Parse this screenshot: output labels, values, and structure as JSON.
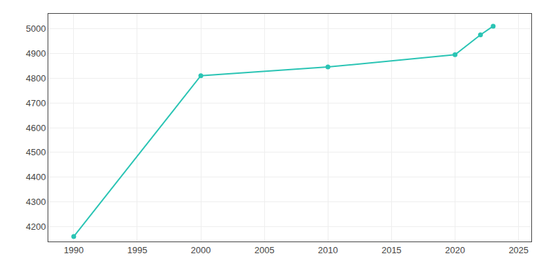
{
  "chart_data": {
    "type": "line",
    "x": [
      1990,
      2000,
      2010,
      2020,
      2022,
      2023
    ],
    "values": [
      4160,
      4810,
      4845,
      4895,
      4975,
      5010
    ],
    "color": "#2ac4b4",
    "marker": "circle",
    "xlim": [
      1988,
      2026
    ],
    "ylim": [
      4140,
      5060
    ],
    "xticks": [
      1990,
      1995,
      2000,
      2005,
      2010,
      2015,
      2020,
      2025
    ],
    "yticks": [
      4200,
      4300,
      4400,
      4500,
      4600,
      4700,
      4800,
      4900,
      5000
    ],
    "grid": true
  }
}
